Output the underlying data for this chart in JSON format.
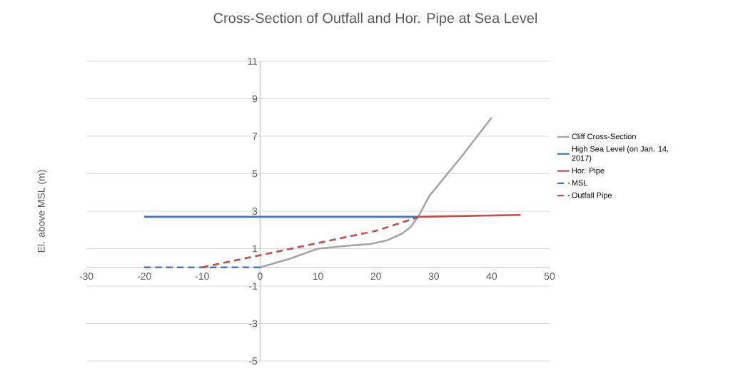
{
  "chart_data": {
    "type": "line",
    "title": "Cross-Section of Outfall and Hor. Pipe at Sea Level",
    "ylabel": "El. above MSL (m)",
    "series": [
      {
        "name": "Cliff Cross-Section",
        "color": "#a5a5a5",
        "line_style": "solid",
        "x": [
          0,
          5,
          10,
          15,
          19,
          22,
          24.5,
          26,
          27.5,
          29.3,
          30,
          35,
          40
        ],
        "values": [
          0,
          0.45,
          1.0,
          1.15,
          1.25,
          1.45,
          1.8,
          2.15,
          2.8,
          3.85,
          4.1,
          6,
          8
        ]
      },
      {
        "name": "High Sea Level (on Jan. 14, 2017)",
        "color": "#4472c4",
        "line_style": "solid",
        "x": [
          -20,
          27.5
        ],
        "values": [
          2.7,
          2.7
        ]
      },
      {
        "name": "Hor. Pipe",
        "color": "#c0504d",
        "line_style": "solid",
        "x": [
          27.5,
          45
        ],
        "values": [
          2.7,
          2.8
        ]
      },
      {
        "name": "MSL",
        "color": "#4472c4",
        "line_style": "dashed",
        "x": [
          -20,
          0
        ],
        "values": [
          0,
          0
        ]
      },
      {
        "name": "Outfall Pipe",
        "color": "#c0504d",
        "line_style": "dashed",
        "x": [
          -10,
          0,
          10,
          20,
          27.5
        ],
        "values": [
          0,
          0.65,
          1.3,
          1.95,
          2.7
        ]
      }
    ],
    "xlim": [
      -30,
      50
    ],
    "xticks": [
      -30,
      -20,
      -10,
      0,
      10,
      20,
      30,
      40,
      50
    ],
    "ylim": [
      -5,
      11
    ],
    "yticks": [
      -5,
      -3,
      -1,
      1,
      3,
      5,
      7,
      9,
      11
    ],
    "grid": "y",
    "legend": "right",
    "marker": "none"
  }
}
